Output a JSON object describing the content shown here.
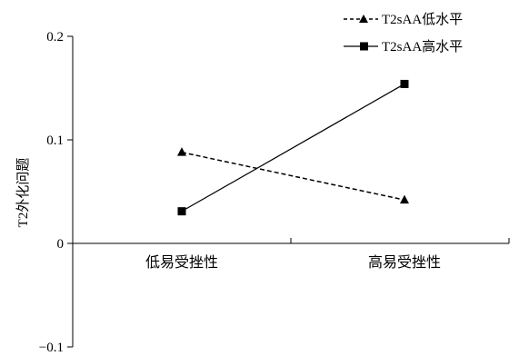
{
  "chart_data": {
    "type": "line",
    "title": "",
    "xlabel": "",
    "ylabel": "T2外化问题",
    "categories": [
      "低易受挫性",
      "高易受挫性"
    ],
    "ylim": [
      -0.1,
      0.2
    ],
    "yticks": [
      "−0.1",
      "0",
      "0.1",
      "0.2"
    ],
    "ytick_values": [
      -0.1,
      0,
      0.1,
      0.2
    ],
    "grid": false,
    "legend_position": "top-right",
    "series": [
      {
        "name": "T2sAA低水平",
        "values": [
          0.088,
          0.042
        ],
        "line_style": "dashed",
        "marker": "triangle",
        "color": "#000000"
      },
      {
        "name": "T2sAA高水平",
        "values": [
          0.031,
          0.154
        ],
        "line_style": "solid",
        "marker": "square",
        "color": "#000000"
      }
    ]
  }
}
